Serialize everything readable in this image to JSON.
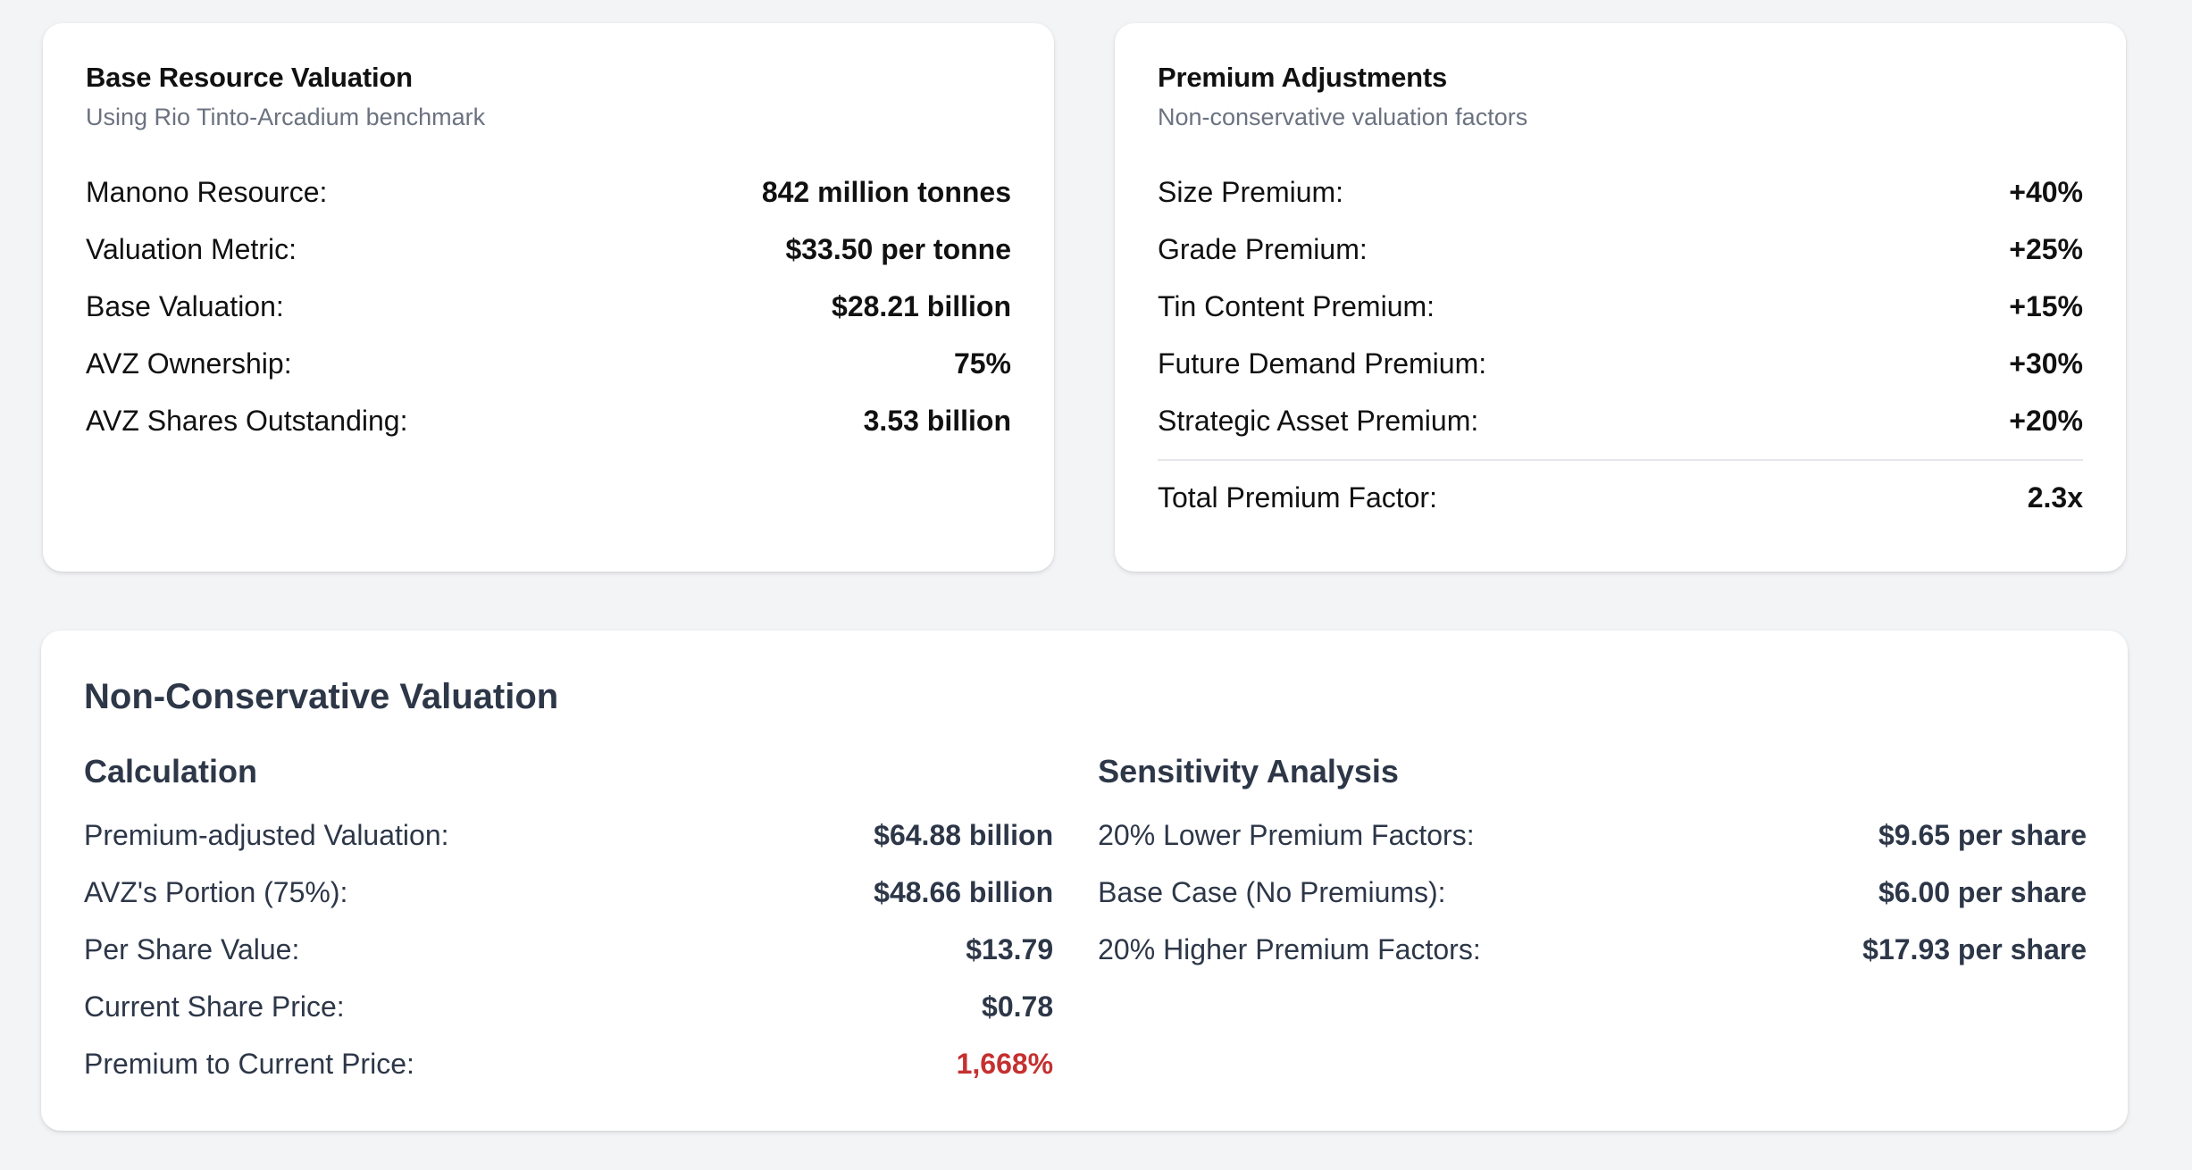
{
  "base_card": {
    "title": "Base Resource Valuation",
    "subtitle": "Using Rio Tinto-Arcadium benchmark",
    "rows": [
      {
        "label": "Manono Resource:",
        "value": "842 million tonnes"
      },
      {
        "label": "Valuation Metric:",
        "value": "$33.50 per tonne"
      },
      {
        "label": "Base Valuation:",
        "value": "$28.21 billion"
      },
      {
        "label": "AVZ Ownership:",
        "value": "75%"
      },
      {
        "label": "AVZ Shares Outstanding:",
        "value": "3.53 billion"
      }
    ]
  },
  "premium_card": {
    "title": "Premium Adjustments",
    "subtitle": "Non-conservative valuation factors",
    "rows": [
      {
        "label": "Size Premium:",
        "value": "+40%"
      },
      {
        "label": "Grade Premium:",
        "value": "+25%"
      },
      {
        "label": "Tin Content Premium:",
        "value": "+15%"
      },
      {
        "label": "Future Demand Premium:",
        "value": "+30%"
      },
      {
        "label": "Strategic Asset Premium:",
        "value": "+20%"
      }
    ],
    "total": {
      "label": "Total Premium Factor:",
      "value": "2.3x"
    }
  },
  "nc_card": {
    "title": "Non-Conservative Valuation",
    "calculation": {
      "heading": "Calculation",
      "rows": [
        {
          "label": "Premium-adjusted Valuation:",
          "value": "$64.88 billion"
        },
        {
          "label": "AVZ's Portion (75%):",
          "value": "$48.66 billion"
        },
        {
          "label": "Per Share Value:",
          "value": "$13.79"
        },
        {
          "label": "Current Share Price:",
          "value": "$0.78"
        },
        {
          "label": "Premium to Current Price:",
          "value": "1,668%"
        }
      ]
    },
    "sensitivity": {
      "heading": "Sensitivity Analysis",
      "rows": [
        {
          "label": "20% Lower Premium Factors:",
          "value": "$9.65 per share"
        },
        {
          "label": "Base Case (No Premiums):",
          "value": "$6.00 per share"
        },
        {
          "label": "20% Higher Premium Factors:",
          "value": "$17.93 per share"
        }
      ]
    }
  },
  "colors": {
    "background": "#f3f4f6",
    "card": "#ffffff",
    "heading_dark": "#2d3748",
    "subtitle_gray": "#6b7280",
    "accent_red": "#c53030"
  }
}
